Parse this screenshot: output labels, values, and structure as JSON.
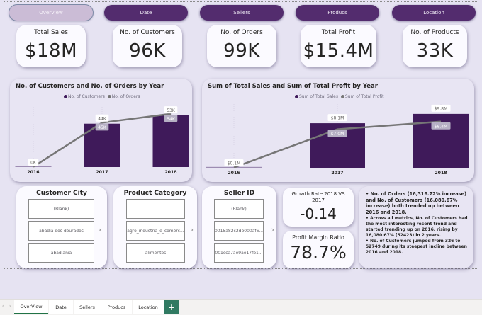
{
  "nav_buttons": [
    {
      "label": "OverView",
      "active": true
    },
    {
      "label": "Date",
      "active": false
    },
    {
      "label": "Sellers",
      "active": false
    },
    {
      "label": "Producs",
      "active": false
    },
    {
      "label": "Location",
      "active": false
    }
  ],
  "kpis": [
    {
      "label": "Total Sales",
      "value": "$18M"
    },
    {
      "label": "No. of Customers",
      "value": "96K"
    },
    {
      "label": "No. of Orders",
      "value": "99K"
    },
    {
      "label": "Total Profit",
      "value": "$15.4M"
    },
    {
      "label": "No. of Products",
      "value": "33K"
    }
  ],
  "chart_data": [
    {
      "type": "bar",
      "title": "No. of Customers and No. of Orders by Year",
      "categories": [
        "2016",
        "2017",
        "2018"
      ],
      "series": [
        {
          "name": "No. of Customers",
          "kind": "bar",
          "values": [
            0.3,
            44,
            53
          ],
          "labels": [
            "0K",
            "44K",
            "53K"
          ],
          "color": "#3f1a5a"
        },
        {
          "name": "No. of Orders",
          "kind": "line",
          "values": [
            0.3,
            45,
            54
          ],
          "labels": [
            "",
            "45K",
            "54K"
          ],
          "color": "#767676"
        }
      ],
      "ylim": [
        0,
        56
      ],
      "legend": "top-center"
    },
    {
      "type": "bar",
      "title": "Sum of Total Sales and Sum of Total Profit by Year",
      "categories": [
        "2016",
        "2017",
        "2018"
      ],
      "series": [
        {
          "name": "Sum of Total Sales",
          "kind": "bar",
          "values": [
            0.1,
            8.1,
            9.8
          ],
          "labels": [
            "$0.1M",
            "$8.1M",
            "$9.8M"
          ],
          "color": "#3f1a5a"
        },
        {
          "name": "Sum of Total Profit",
          "kind": "line",
          "values": [
            0.05,
            7.0,
            8.4
          ],
          "labels": [
            "",
            "$7.0M",
            "$8.4M"
          ],
          "color": "#767676"
        }
      ],
      "ylim": [
        0,
        10.3
      ],
      "legend": "top-center"
    }
  ],
  "slicers": [
    {
      "title": "Customer City",
      "items": [
        "(Blank)",
        "abadia dos dourados",
        "abadiania"
      ]
    },
    {
      "title": "Product Category",
      "items": [
        "",
        "agro_industria_e_comerc...",
        "alimentos"
      ]
    },
    {
      "title": "Seller ID",
      "items": [
        "(Blank)",
        "0015a82c2db000af6...",
        "001cca7ae9ae17fb1..."
      ]
    }
  ],
  "growth_rate": {
    "label": "Growth Rate 2018 VS 2017",
    "value": "-0.14"
  },
  "profit_margin": {
    "label": "Profit Margin Ratio",
    "value": "78.7%"
  },
  "narrative": [
    "No. of Orders (16,316.72% increase) and No. of Customers (16,080.67% increase) both trended up between 2016 and 2018.",
    "Across all metrics, No. of Customers had the most interesting recent trend and started trending up on 2016, rising by 16,080.67% (52423) in 2 years.",
    "No. of Customers jumped from 326 to 52749 during its steepest incline between 2016 and 2018."
  ],
  "tabs": [
    {
      "label": "OverView",
      "active": true
    },
    {
      "label": "Date",
      "active": false
    },
    {
      "label": "Sellers",
      "active": false
    },
    {
      "label": "Producs",
      "active": false
    },
    {
      "label": "Location",
      "active": false
    }
  ],
  "add_tab_label": "+",
  "tab_prev_icon": "‹",
  "tab_next_icon": "›"
}
